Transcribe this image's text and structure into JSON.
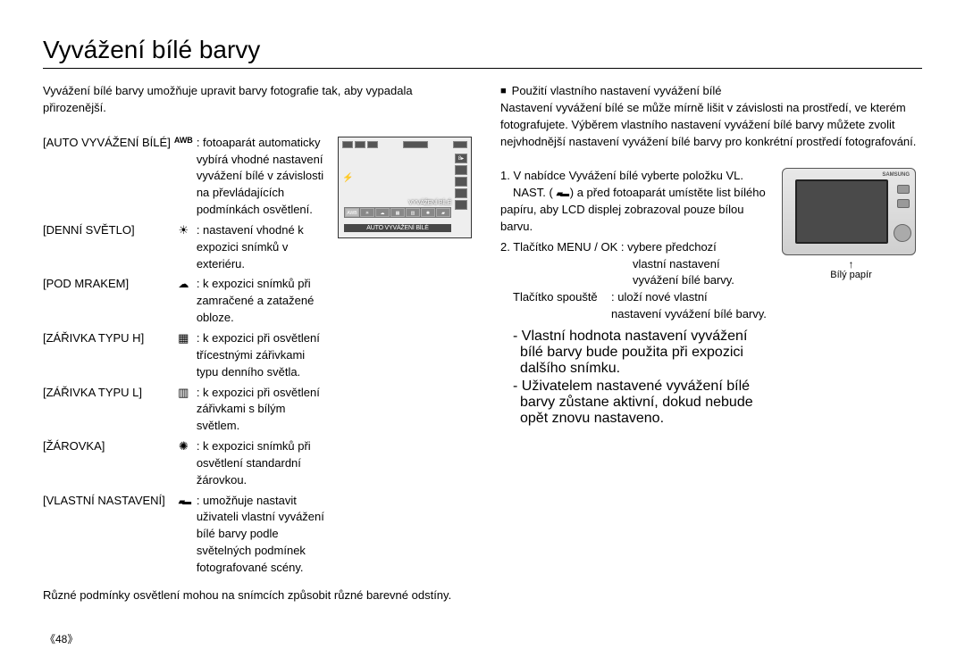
{
  "title": "Vyvážení bílé barvy",
  "intro": "Vyvážení bílé barvy umožňuje upravit barvy fotografie tak, aby vypadala přirozenější.",
  "wb_modes": [
    {
      "label": "[AUTO VYVÁŽENÍ BÍLÉ]",
      "icon": "AWB",
      "desc": ": fotoaparát automaticky vybírá vhodné nastavení vyvážení bílé v závislosti na převládajících podmínkách osvětlení."
    },
    {
      "label": "[DENNÍ SVĚTLO]",
      "icon": "☀",
      "desc": ": nastavení vhodné k expozici snímků v exteriéru."
    },
    {
      "label": "[POD MRAKEM]",
      "icon": "cloud",
      "desc": ": k expozici snímků při zamračené a zatažené obloze."
    },
    {
      "label": "[ZÁŘIVKA TYPU H]",
      "icon": "▦",
      "desc": ": k expozici při osvětlení třícestnými zářivkami typu denního světla."
    },
    {
      "label": "[ZÁŘIVKA TYPU L]",
      "icon": "▥",
      "desc": ": k expozici při osvětlení zářivkami s bílým světlem."
    },
    {
      "label": "[ŽÁROVKA]",
      "icon": "✺",
      "desc": ": k expozici snímků při osvětlení standardní žárovkou."
    },
    {
      "label": "[VLASTNÍ NASTAVENÍ]",
      "icon": "custom",
      "desc": ": umožňuje nastavit uživateli vlastní vyvážení bílé barvy podle světelných podmínek fotografované scény."
    }
  ],
  "footnote_left": "Různé podmínky osvětlení mohou na snímcích způsobit různé barevné odstíny.",
  "right": {
    "heading": "Použití vlastního nastavení vyvážení bílé",
    "para": "Nastavení vyvážení bílé se může mírně lišit v závislosti na prostředí, ve kterém fotografujete. Výběrem vlastního nastavení vyvážení bílé barvy můžete zvolit nejvhodnější nastavení vyvážení bílé barvy pro konkrétní prostředí fotografování.",
    "step1_a": "1. V nabídce Vyvážení bílé vyberte položku VL.",
    "step1_b": "NAST. (",
    "step1_c": ") a před fotoaparát umístěte list bílého papíru, aby LCD displej zobrazoval pouze bílou barvu.",
    "step2": "2. Tlačítko MENU / OK : vybere předchozí",
    "step2_sub1": "vlastní nastavení",
    "step2_sub2": "vyvážení bílé barvy.",
    "shutter_k": "Tlačítko spouště",
    "shutter_v1": ": uloží nové vlastní",
    "shutter_v2": "nastavení vyvážení bílé barvy.",
    "note1": "- Vlastní hodnota nastavení vyvážení bílé barvy bude použita při expozici dalšího snímku.",
    "note2": "- Uživatelem nastavené vyvážení bílé barvy zůstane aktivní, dokud nebude opět znovu nastaveno.",
    "cam_label": "Bílý papír"
  },
  "lcd": {
    "strip_title": "VYVÁŽENÍ BÍLÉ",
    "caption": "AUTO VYVÁŽENÍ BÍLÉ",
    "awb": "AWB"
  },
  "page_number": "《48》"
}
